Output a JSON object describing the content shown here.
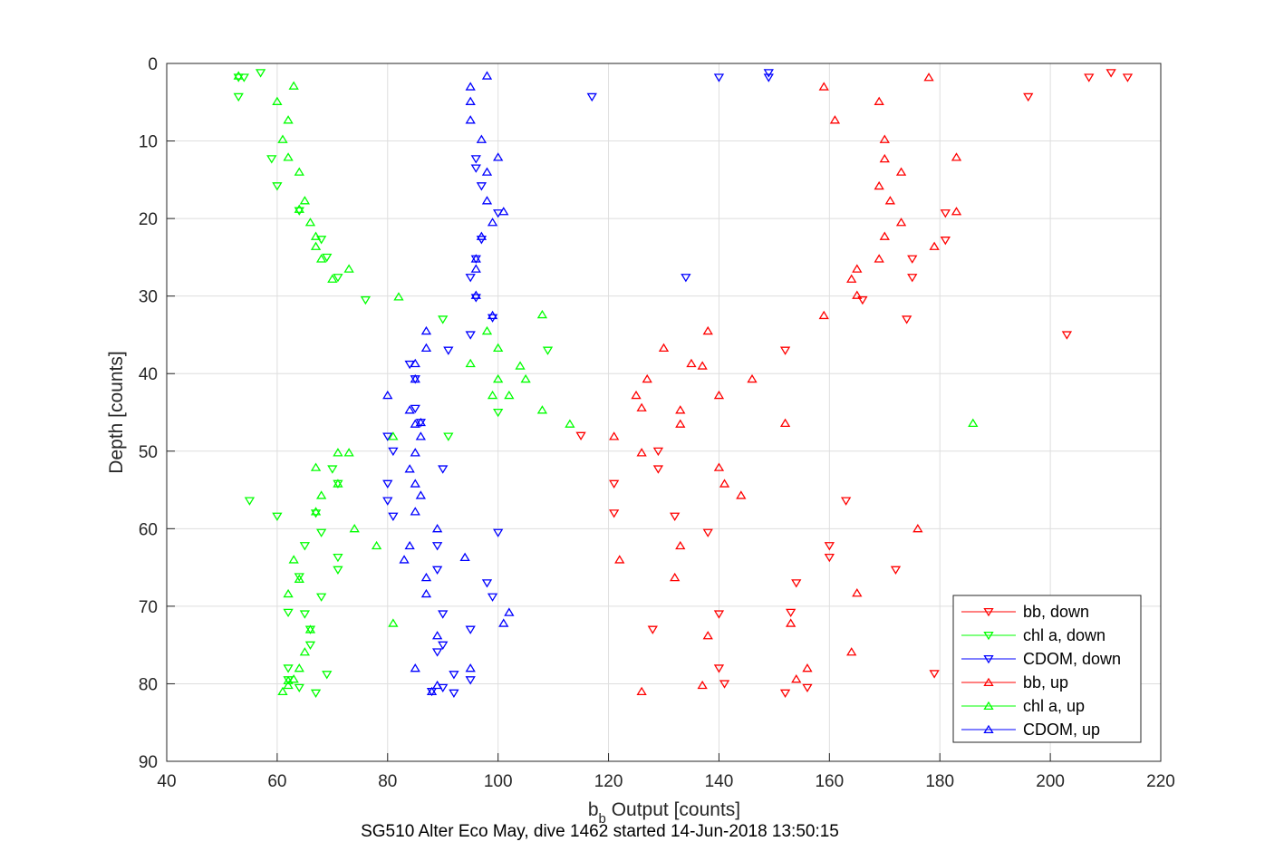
{
  "chart_data": {
    "type": "scatter",
    "title": "",
    "xlabel": "b Output [counts]",
    "xlabel_subscript": "b",
    "xlabel_parts": {
      "main": "b",
      "sub": "b",
      "rest": " Output [counts]"
    },
    "ylabel": "Depth [counts]",
    "caption": "SG510 Alter Eco May, dive 1462 started 14-Jun-2018 13:50:15",
    "xlim": [
      40,
      220
    ],
    "ylim": [
      0,
      90
    ],
    "y_reversed": true,
    "grid": true,
    "legend_position": "lower-right",
    "x_ticks": [
      "40",
      "60",
      "80",
      "100",
      "120",
      "140",
      "160",
      "180",
      "200",
      "220"
    ],
    "y_ticks": [
      "0",
      "10",
      "20",
      "30",
      "40",
      "50",
      "60",
      "70",
      "80",
      "90"
    ],
    "series": [
      {
        "name": "bb, down",
        "color": "#ff0000",
        "marker": "triangle-down",
        "points": [
          [
            211,
            1.2
          ],
          [
            207,
            1.8
          ],
          [
            214,
            1.8
          ],
          [
            196,
            4.3
          ],
          [
            203,
            35
          ],
          [
            152,
            37
          ],
          [
            115,
            48
          ],
          [
            129,
            50
          ],
          [
            129,
            52.3
          ],
          [
            121,
            54.2
          ],
          [
            163,
            56.4
          ],
          [
            121,
            58
          ],
          [
            132,
            58.4
          ],
          [
            138,
            60.5
          ],
          [
            160,
            62.2
          ],
          [
            160,
            63.7
          ],
          [
            172,
            65.3
          ],
          [
            154,
            67
          ],
          [
            140,
            71
          ],
          [
            128,
            73
          ],
          [
            153,
            70.8
          ],
          [
            179,
            78.7
          ],
          [
            140,
            78
          ],
          [
            141,
            80
          ],
          [
            156,
            80.5
          ],
          [
            152,
            81.2
          ],
          [
            166,
            30.5
          ],
          [
            174,
            33
          ],
          [
            181,
            22.8
          ],
          [
            181,
            19.3
          ],
          [
            175,
            25.2
          ],
          [
            175,
            27.6
          ]
        ]
      },
      {
        "name": "chl a, down",
        "color": "#00ff00",
        "marker": "triangle-down",
        "points": [
          [
            53,
            1.8
          ],
          [
            54,
            1.8
          ],
          [
            53,
            4.3
          ],
          [
            57,
            1.2
          ],
          [
            59,
            12.3
          ],
          [
            60,
            15.8
          ],
          [
            64,
            19
          ],
          [
            68,
            22.7
          ],
          [
            69,
            25
          ],
          [
            71,
            27.6
          ],
          [
            76,
            30.5
          ],
          [
            90,
            33
          ],
          [
            109,
            37
          ],
          [
            100,
            45
          ],
          [
            91,
            48.1
          ],
          [
            70,
            52.3
          ],
          [
            55,
            56.4
          ],
          [
            60,
            58.4
          ],
          [
            67,
            58
          ],
          [
            65,
            62.2
          ],
          [
            71,
            65.3
          ],
          [
            68,
            68.8
          ],
          [
            65,
            71
          ],
          [
            66,
            73
          ],
          [
            66,
            75
          ],
          [
            62,
            78
          ],
          [
            69,
            78.8
          ],
          [
            64,
            80.5
          ],
          [
            62,
            79.5
          ],
          [
            67,
            81.2
          ],
          [
            71,
            54.2
          ],
          [
            71,
            63.7
          ],
          [
            64,
            66.2
          ],
          [
            62,
            70.8
          ],
          [
            68,
            60.5
          ]
        ]
      },
      {
        "name": "CDOM, down",
        "color": "#0000ff",
        "marker": "triangle-down",
        "points": [
          [
            149,
            1.2
          ],
          [
            140,
            1.8
          ],
          [
            149,
            1.8
          ],
          [
            117,
            4.3
          ],
          [
            96,
            12.3
          ],
          [
            97,
            15.8
          ],
          [
            97,
            22.7
          ],
          [
            96,
            25.2
          ],
          [
            95,
            27.6
          ],
          [
            96,
            30.2
          ],
          [
            99,
            32.8
          ],
          [
            95,
            35
          ],
          [
            91,
            37
          ],
          [
            84,
            38.8
          ],
          [
            85,
            40.7
          ],
          [
            86,
            46.3
          ],
          [
            80,
            48.1
          ],
          [
            81,
            50
          ],
          [
            90,
            52.3
          ],
          [
            80,
            54.2
          ],
          [
            80,
            56.4
          ],
          [
            81,
            58.4
          ],
          [
            100,
            60.5
          ],
          [
            89,
            62.2
          ],
          [
            89,
            65.3
          ],
          [
            98,
            67
          ],
          [
            99,
            68.8
          ],
          [
            90,
            71
          ],
          [
            95,
            73
          ],
          [
            89,
            75.9
          ],
          [
            90,
            75
          ],
          [
            92,
            78.8
          ],
          [
            95,
            79.5
          ],
          [
            90,
            80.5
          ],
          [
            88,
            81
          ],
          [
            92,
            81.2
          ],
          [
            134,
            27.6
          ],
          [
            100,
            19.3
          ],
          [
            85,
            44.5
          ],
          [
            96,
            13.5
          ]
        ]
      },
      {
        "name": "bb, up",
        "color": "#ff0000",
        "marker": "triangle-up",
        "points": [
          [
            178,
            1.8
          ],
          [
            159,
            3
          ],
          [
            169,
            4.9
          ],
          [
            161,
            7.3
          ],
          [
            170,
            9.8
          ],
          [
            170,
            12.3
          ],
          [
            183,
            12.1
          ],
          [
            173,
            14
          ],
          [
            169,
            15.8
          ],
          [
            171,
            17.7
          ],
          [
            183,
            19.1
          ],
          [
            173,
            20.5
          ],
          [
            170,
            22.3
          ],
          [
            179,
            23.6
          ],
          [
            169,
            25.2
          ],
          [
            165,
            26.5
          ],
          [
            164,
            27.8
          ],
          [
            165,
            29.9
          ],
          [
            159,
            32.5
          ],
          [
            138,
            34.5
          ],
          [
            130,
            36.7
          ],
          [
            135,
            38.7
          ],
          [
            137,
            39
          ],
          [
            127,
            40.7
          ],
          [
            146,
            40.7
          ],
          [
            125,
            42.8
          ],
          [
            140,
            42.8
          ],
          [
            126,
            44.4
          ],
          [
            133,
            44.7
          ],
          [
            133,
            46.5
          ],
          [
            152,
            46.4
          ],
          [
            121,
            48.1
          ],
          [
            126,
            50.2
          ],
          [
            140,
            52.1
          ],
          [
            141,
            54.2
          ],
          [
            144,
            55.7
          ],
          [
            176,
            60
          ],
          [
            133,
            62.2
          ],
          [
            122,
            64
          ],
          [
            132,
            66.3
          ],
          [
            165,
            68.3
          ],
          [
            153,
            72.2
          ],
          [
            138,
            73.8
          ],
          [
            164,
            75.9
          ],
          [
            156,
            78
          ],
          [
            154,
            79.4
          ],
          [
            137,
            80.2
          ],
          [
            126,
            81
          ]
        ]
      },
      {
        "name": "chl a, up",
        "color": "#00ff00",
        "marker": "triangle-up",
        "points": [
          [
            53,
            1.6
          ],
          [
            63,
            2.9
          ],
          [
            60,
            4.9
          ],
          [
            62,
            7.3
          ],
          [
            61,
            9.8
          ],
          [
            62,
            12.1
          ],
          [
            64,
            14
          ],
          [
            65,
            17.7
          ],
          [
            64,
            18.8
          ],
          [
            66,
            20.5
          ],
          [
            67,
            22.3
          ],
          [
            67,
            23.6
          ],
          [
            68,
            25.2
          ],
          [
            73,
            26.5
          ],
          [
            70,
            27.8
          ],
          [
            82,
            30.1
          ],
          [
            108,
            32.4
          ],
          [
            98,
            34.5
          ],
          [
            100,
            36.7
          ],
          [
            104,
            39
          ],
          [
            95,
            38.7
          ],
          [
            100,
            40.7
          ],
          [
            105,
            40.7
          ],
          [
            102,
            42.8
          ],
          [
            99,
            42.8
          ],
          [
            108,
            44.7
          ],
          [
            113,
            46.5
          ],
          [
            186,
            46.4
          ],
          [
            81,
            48.1
          ],
          [
            73,
            50.2
          ],
          [
            71,
            50.2
          ],
          [
            67,
            52.1
          ],
          [
            68,
            55.7
          ],
          [
            71,
            54.2
          ],
          [
            67,
            57.8
          ],
          [
            74,
            60
          ],
          [
            78,
            62.2
          ],
          [
            63,
            64
          ],
          [
            64,
            66.5
          ],
          [
            62,
            68.4
          ],
          [
            81,
            72.2
          ],
          [
            66,
            73
          ],
          [
            65,
            75.9
          ],
          [
            64,
            78
          ],
          [
            62,
            80.2
          ],
          [
            61,
            81
          ],
          [
            63,
            79.4
          ],
          [
            62,
            79.6
          ]
        ]
      },
      {
        "name": "CDOM, up",
        "color": "#0000ff",
        "marker": "triangle-up",
        "points": [
          [
            98,
            1.6
          ],
          [
            95,
            3
          ],
          [
            95,
            4.9
          ],
          [
            95,
            7.3
          ],
          [
            97,
            9.8
          ],
          [
            100,
            12.1
          ],
          [
            98,
            14
          ],
          [
            98,
            17.7
          ],
          [
            101,
            19.1
          ],
          [
            99,
            20.5
          ],
          [
            97,
            22.3
          ],
          [
            96,
            25.2
          ],
          [
            96,
            26.5
          ],
          [
            96,
            29.9
          ],
          [
            99,
            32.5
          ],
          [
            87,
            34.5
          ],
          [
            87,
            36.7
          ],
          [
            85,
            38.7
          ],
          [
            85,
            40.7
          ],
          [
            80,
            42.8
          ],
          [
            84,
            44.7
          ],
          [
            85,
            46.5
          ],
          [
            86,
            46.3
          ],
          [
            86,
            48.1
          ],
          [
            85,
            50.2
          ],
          [
            84,
            52.3
          ],
          [
            85,
            54.2
          ],
          [
            86,
            55.7
          ],
          [
            85,
            57.8
          ],
          [
            89,
            60
          ],
          [
            84,
            62.2
          ],
          [
            83,
            64
          ],
          [
            87,
            66.3
          ],
          [
            87,
            68.4
          ],
          [
            102,
            70.8
          ],
          [
            101,
            72.2
          ],
          [
            89,
            73.8
          ],
          [
            85,
            78
          ],
          [
            95,
            78
          ],
          [
            89,
            80.2
          ],
          [
            94,
            63.7
          ],
          [
            88,
            81
          ]
        ]
      }
    ]
  }
}
